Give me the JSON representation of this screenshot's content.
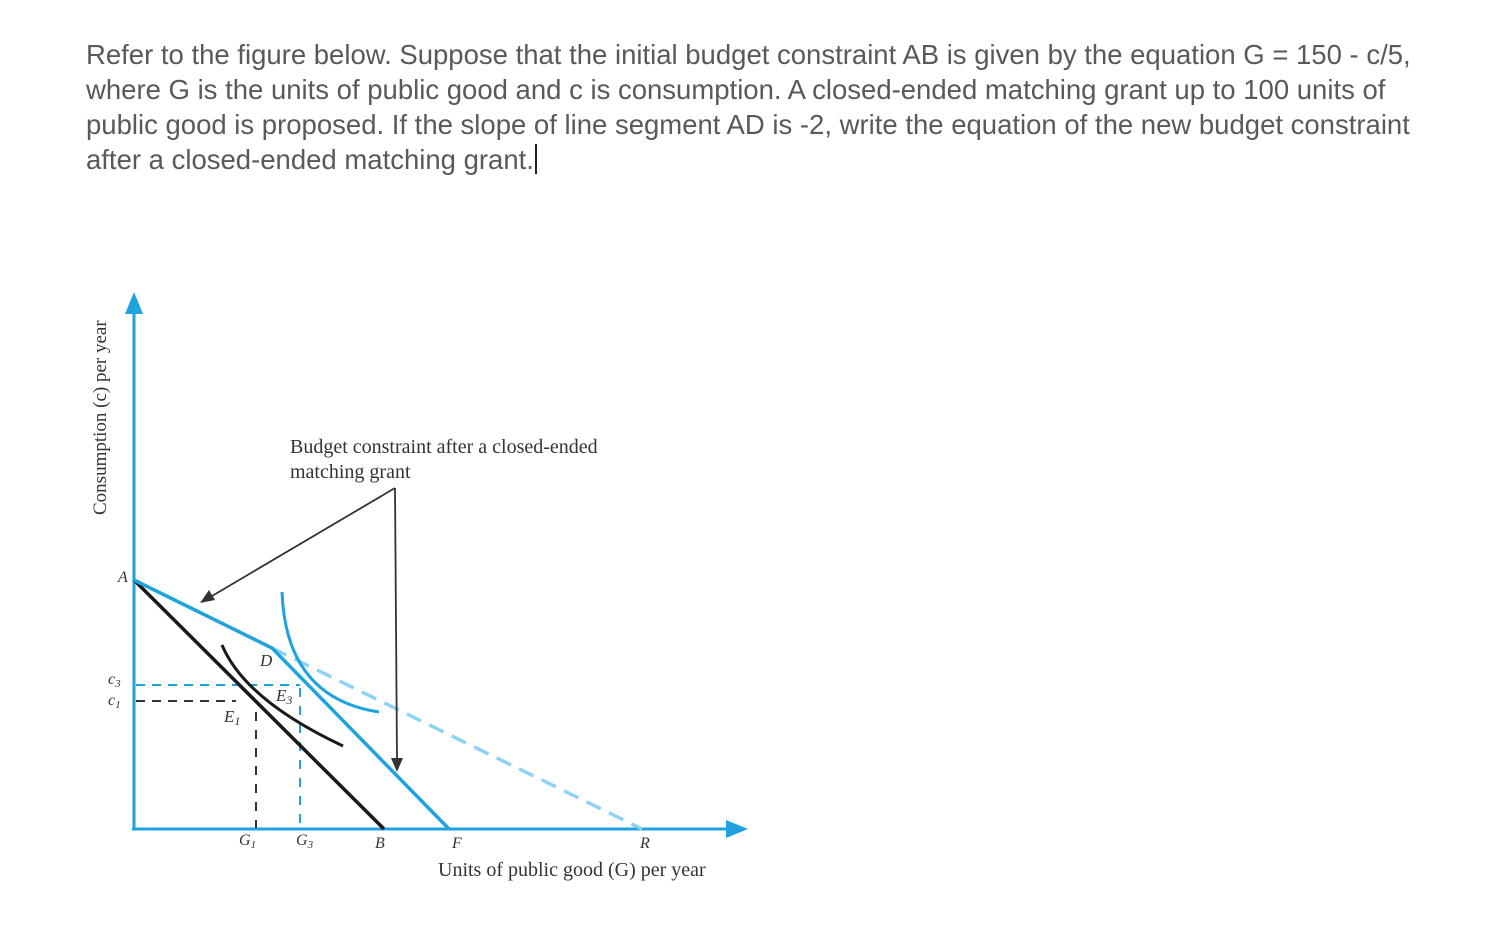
{
  "question": {
    "text": "Refer to the figure below. Suppose that the initial budget constraint AB is given by the equation G = 150 - c/5, where G is the units of public good and c is consumption. A closed-ended matching grant up to 100 units of public good is proposed. If the slope of line segment AD is -2, write the equation of the new budget constraint after a closed-ended matching grant."
  },
  "figure": {
    "y_axis_label": "Consumption (c) per year",
    "x_axis_label": "Units of public good (G) per year",
    "annotation_line1": "Budget constraint after a closed-ended",
    "annotation_line2": "matching grant",
    "points": {
      "A": "A",
      "B": "B",
      "D": "D",
      "F": "F",
      "R": "R",
      "E1": "E",
      "E1_sub": "1",
      "E3": "E",
      "E3_sub": "3",
      "G1": "G",
      "G1_sub": "1",
      "G3": "G",
      "G3_sub": "3",
      "c3": "c",
      "c3_sub": "3",
      "c1": "c",
      "c1_sub": "1"
    },
    "colors": {
      "axis": "#1ea3e0",
      "budget_new": "#1ea3e0",
      "budget_dashed": "#8fd3f4",
      "original_budget": "#1a1a1a",
      "guide_black": "#333333",
      "guide_blue": "#1ea3e0",
      "arrow": "#333333",
      "label": "#333333"
    }
  }
}
